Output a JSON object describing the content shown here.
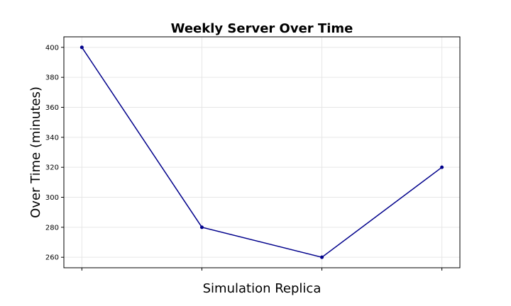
{
  "chart_data": {
    "type": "line",
    "title": "Weekly Server Over Time",
    "xlabel": "Simulation Replica",
    "ylabel": "Over Time (minutes)",
    "x": [
      1,
      2,
      3,
      4
    ],
    "x_tick_labels": [
      "",
      "",
      "",
      ""
    ],
    "y_ticks": [
      260,
      280,
      300,
      320,
      340,
      360,
      380,
      400
    ],
    "ylim": [
      253,
      407
    ],
    "xlim": [
      0.85,
      4.15
    ],
    "grid": true,
    "series": [
      {
        "values": [
          400,
          280,
          260,
          320
        ],
        "color": "#00008b",
        "marker": "circle"
      }
    ]
  }
}
